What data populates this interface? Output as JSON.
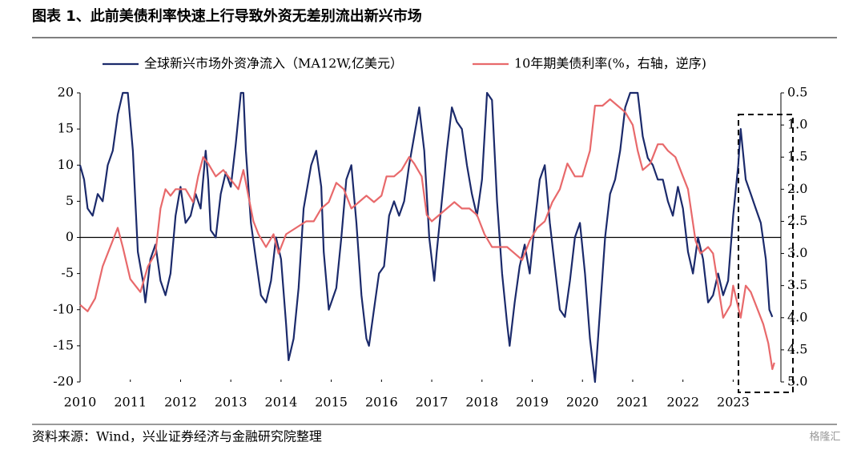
{
  "chart_data": {
    "type": "line",
    "title": "图表 1、此前美债利率快速上行导致外资无差别流出新兴市场",
    "source": "资料来源：Wind，兴业证券经济与金融研究院整理",
    "watermark": "格隆汇",
    "xlim": [
      2010,
      2023.95
    ],
    "xticks": [
      2010,
      2011,
      2012,
      2013,
      2014,
      2015,
      2016,
      2017,
      2018,
      2019,
      2020,
      2021,
      2022,
      2023
    ],
    "ylim": [
      -20,
      20
    ],
    "yticks": [
      -20,
      -15,
      -10,
      -5,
      0,
      5,
      10,
      15,
      20
    ],
    "y2lim": [
      0.5,
      5
    ],
    "y2_reversed": true,
    "y2ticks": [
      0.5,
      {
        "value": 1,
        "label": "1.0"
      },
      1.5,
      {
        "value": 2,
        "label": "2.0"
      },
      2.5,
      {
        "value": 3,
        "label": "3.0"
      },
      3.5,
      {
        "value": 4,
        "label": "4.0"
      },
      4.5,
      {
        "value": 5,
        "label": "5.0"
      }
    ],
    "series": [
      {
        "name": "全球新兴市场外资净流入（MA12W,亿美元）",
        "color": "#1b2a6b",
        "x": [
          2010.0,
          2010.08,
          2010.15,
          2010.25,
          2010.35,
          2010.45,
          2010.55,
          2010.65,
          2010.75,
          2010.85,
          2010.95,
          2011.05,
          2011.15,
          2011.25,
          2011.3,
          2011.4,
          2011.5,
          2011.6,
          2011.7,
          2011.8,
          2011.9,
          2012.0,
          2012.1,
          2012.2,
          2012.3,
          2012.4,
          2012.5,
          2012.55,
          2012.6,
          2012.7,
          2012.8,
          2012.9,
          2013.0,
          2013.1,
          2013.2,
          2013.25,
          2013.3,
          2013.4,
          2013.5,
          2013.6,
          2013.7,
          2013.8,
          2013.9,
          2014.0,
          2014.1,
          2014.15,
          2014.25,
          2014.35,
          2014.45,
          2014.6,
          2014.7,
          2014.8,
          2014.85,
          2014.95,
          2015.1,
          2015.2,
          2015.3,
          2015.4,
          2015.5,
          2015.6,
          2015.7,
          2015.75,
          2015.85,
          2015.95,
          2016.05,
          2016.15,
          2016.25,
          2016.35,
          2016.45,
          2016.55,
          2016.65,
          2016.75,
          2016.85,
          2016.95,
          2017.05,
          2017.1,
          2017.2,
          2017.3,
          2017.4,
          2017.5,
          2017.6,
          2017.7,
          2017.8,
          2017.9,
          2018.0,
          2018.1,
          2018.2,
          2018.3,
          2018.4,
          2018.5,
          2018.55,
          2018.65,
          2018.75,
          2018.85,
          2018.95,
          2019.05,
          2019.15,
          2019.25,
          2019.35,
          2019.45,
          2019.55,
          2019.65,
          2019.75,
          2019.85,
          2019.95,
          2020.05,
          2020.15,
          2020.25,
          2020.35,
          2020.45,
          2020.55,
          2020.65,
          2020.75,
          2020.85,
          2020.95,
          2021.1,
          2021.2,
          2021.3,
          2021.4,
          2021.5,
          2021.6,
          2021.7,
          2021.8,
          2021.9,
          2022.0,
          2022.1,
          2022.2,
          2022.3,
          2022.4,
          2022.5,
          2022.6,
          2022.7,
          2022.8,
          2022.9,
          2023.0,
          2023.1,
          2023.15,
          2023.25,
          2023.35,
          2023.45,
          2023.55,
          2023.65,
          2023.72,
          2023.78
        ],
        "values": [
          10,
          8,
          4,
          3,
          6,
          5,
          10,
          12,
          17,
          20,
          20,
          12,
          -2,
          -6,
          -9,
          -3,
          -1,
          -6,
          -8,
          -5,
          3,
          7,
          2,
          3,
          6,
          4,
          12,
          8,
          1,
          0,
          6,
          9,
          7,
          13,
          20,
          20,
          12,
          2,
          -3,
          -8,
          -9,
          -6,
          0,
          -3,
          -12,
          -17,
          -14,
          -7,
          4,
          10,
          12,
          7,
          -2,
          -10,
          -7,
          0,
          8,
          10,
          2,
          -8,
          -14,
          -15,
          -10,
          -5,
          -4,
          3,
          5,
          3,
          5,
          10,
          14,
          18,
          12,
          0,
          -6,
          -2,
          5,
          12,
          18,
          16,
          15,
          10,
          6,
          3,
          8,
          20,
          19,
          5,
          -5,
          -12,
          -15,
          -9,
          -4,
          -1,
          -5,
          2,
          8,
          10,
          2,
          -4,
          -10,
          -11,
          -6,
          0,
          2,
          -5,
          -14,
          -20,
          -10,
          0,
          6,
          8,
          12,
          18,
          20,
          20,
          14,
          11,
          10,
          8,
          8,
          5,
          3,
          7,
          4,
          -2,
          -5,
          0,
          -3,
          -9,
          -8,
          -5,
          -8,
          -6,
          3,
          10,
          15,
          8,
          6,
          4,
          2,
          -3,
          -10,
          -11
        ]
      },
      {
        "name": "10年期美债利率(%，右轴，逆序)",
        "color": "#e8696b",
        "axis": "y2",
        "x": [
          2010.0,
          2010.15,
          2010.3,
          2010.45,
          2010.6,
          2010.75,
          2010.85,
          2011.0,
          2011.1,
          2011.2,
          2011.35,
          2011.5,
          2011.6,
          2011.7,
          2011.8,
          2011.9,
          2012.1,
          2012.25,
          2012.35,
          2012.45,
          2012.55,
          2012.7,
          2012.85,
          2012.95,
          2013.05,
          2013.15,
          2013.25,
          2013.35,
          2013.45,
          2013.55,
          2013.7,
          2013.85,
          2013.95,
          2014.1,
          2014.3,
          2014.5,
          2014.65,
          2014.8,
          2014.95,
          2015.1,
          2015.25,
          2015.4,
          2015.55,
          2015.7,
          2015.85,
          2016.0,
          2016.1,
          2016.25,
          2016.4,
          2016.55,
          2016.65,
          2016.8,
          2016.9,
          2017.0,
          2017.15,
          2017.3,
          2017.45,
          2017.6,
          2017.75,
          2017.9,
          2018.05,
          2018.2,
          2018.35,
          2018.5,
          2018.65,
          2018.8,
          2018.95,
          2019.1,
          2019.25,
          2019.4,
          2019.55,
          2019.7,
          2019.85,
          2020.0,
          2020.15,
          2020.25,
          2020.4,
          2020.55,
          2020.7,
          2020.85,
          2021.0,
          2021.1,
          2021.2,
          2021.35,
          2021.5,
          2021.6,
          2021.7,
          2021.85,
          2022.0,
          2022.1,
          2022.25,
          2022.35,
          2022.5,
          2022.6,
          2022.7,
          2022.8,
          2022.95,
          2023.0,
          2023.15,
          2023.25,
          2023.35,
          2023.5,
          2023.6,
          2023.7,
          2023.78,
          2023.82
        ],
        "values": [
          3.8,
          3.9,
          3.7,
          3.2,
          2.9,
          2.6,
          2.9,
          3.4,
          3.5,
          3.6,
          3.2,
          3.0,
          2.3,
          2.0,
          2.1,
          2.0,
          2.0,
          2.2,
          1.8,
          1.5,
          1.6,
          1.8,
          1.7,
          1.8,
          1.9,
          2.0,
          1.7,
          2.1,
          2.5,
          2.7,
          2.9,
          2.7,
          3.0,
          2.7,
          2.6,
          2.5,
          2.5,
          2.3,
          2.2,
          1.9,
          2.0,
          2.3,
          2.2,
          2.1,
          2.2,
          2.1,
          1.8,
          1.8,
          1.7,
          1.5,
          1.6,
          1.8,
          2.4,
          2.5,
          2.4,
          2.3,
          2.2,
          2.3,
          2.3,
          2.4,
          2.7,
          2.9,
          2.9,
          2.9,
          3.0,
          3.1,
          2.8,
          2.6,
          2.5,
          2.2,
          2.0,
          1.6,
          1.8,
          1.8,
          1.4,
          0.7,
          0.7,
          0.6,
          0.7,
          0.8,
          1.0,
          1.4,
          1.7,
          1.6,
          1.3,
          1.3,
          1.4,
          1.5,
          1.8,
          2.0,
          2.8,
          3.0,
          2.9,
          3.0,
          3.5,
          4.0,
          3.8,
          3.5,
          4.0,
          3.5,
          3.6,
          3.9,
          4.1,
          4.4,
          4.8,
          4.7
        ]
      }
    ]
  }
}
